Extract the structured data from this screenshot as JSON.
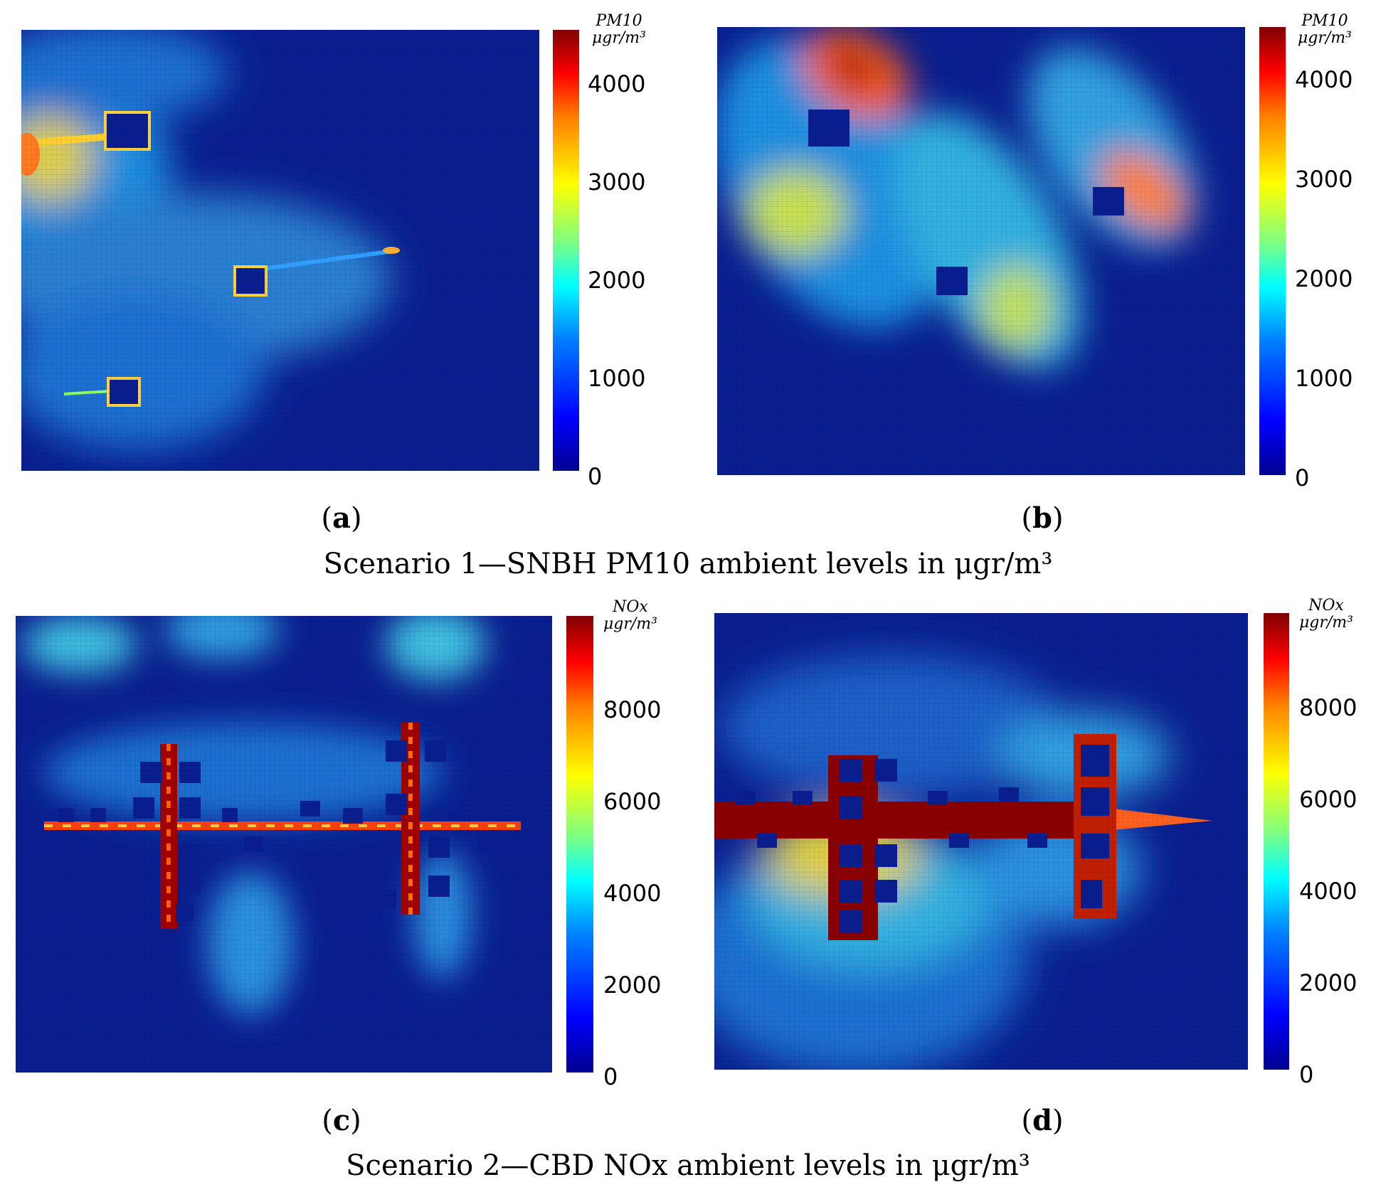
{
  "figure": {
    "caption_top": "Scenario 1—SNBH PM10 ambient levels in  μgr/m³",
    "caption_bottom": "Scenario 2—CBD NOx ambient levels in  μgr/m³"
  },
  "chart_data": [
    {
      "type": "heatmap",
      "panel_label": "a",
      "colorbar": {
        "title_line1": "PM10",
        "title_line2": "μgr/m³",
        "min": 0,
        "max": 4300,
        "ticks": [
          "0",
          "1000",
          "2000",
          "3000",
          "4000"
        ]
      },
      "colormap": "jet",
      "colors": {
        "background": "#0a1f8f",
        "max": "#800000"
      }
    },
    {
      "type": "heatmap",
      "panel_label": "b",
      "colorbar": {
        "title_line1": "PM10",
        "title_line2": "μgr/m³",
        "min": 0,
        "max": 4300,
        "ticks": [
          "0",
          "1000",
          "2000",
          "3000",
          "4000"
        ]
      },
      "colormap": "jet",
      "colors": {
        "background": "#0a1f8f",
        "max": "#800000"
      }
    },
    {
      "type": "heatmap",
      "panel_label": "c",
      "colorbar": {
        "title_line1": "NOx",
        "title_line2": "μgr/m³",
        "min": 0,
        "max": 9700,
        "ticks": [
          "0",
          "2000",
          "4000",
          "6000",
          "8000"
        ]
      },
      "colormap": "jet",
      "colors": {
        "background": "#0a1f8f",
        "max": "#800000"
      }
    },
    {
      "type": "heatmap",
      "panel_label": "d",
      "colorbar": {
        "title_line1": "NOx",
        "title_line2": "μgr/m³",
        "min": 0,
        "max": 9700,
        "ticks": [
          "0",
          "2000",
          "4000",
          "6000",
          "8000"
        ]
      },
      "colormap": "jet",
      "colors": {
        "background": "#0a1f8f",
        "max": "#800000"
      }
    }
  ]
}
